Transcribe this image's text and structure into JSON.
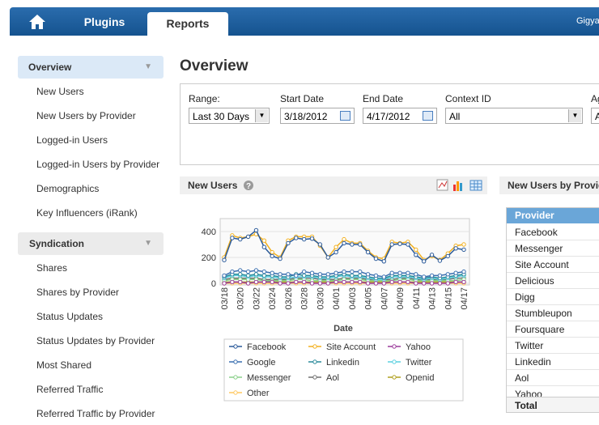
{
  "nav": {
    "tabs": [
      "Plugins",
      "Reports"
    ],
    "user": "Gigya"
  },
  "sidebar": {
    "sections": [
      {
        "title": "Overview",
        "items": [
          "New Users",
          "New Users by Provider",
          "Logged-in Users",
          "Logged-in Users by Provider",
          "Demographics",
          "Key Influencers (iRank)"
        ]
      },
      {
        "title": "Syndication",
        "items": [
          "Shares",
          "Shares by Provider",
          "Status Updates",
          "Status Updates by Provider",
          "Most Shared",
          "Referred Traffic",
          "Referred Traffic by Provider"
        ]
      }
    ]
  },
  "main": {
    "title": "Overview",
    "filters": [
      {
        "label": "Range:",
        "value": "Last 30 Days"
      },
      {
        "label": "Start Date",
        "value": "3/18/2012"
      },
      {
        "label": "End Date",
        "value": "4/17/2012"
      },
      {
        "label": "Context ID",
        "value": "All"
      },
      {
        "label": "Ag",
        "value": "A"
      }
    ]
  },
  "new_users_panel": {
    "title": "New Users",
    "chart": {
      "type": "line",
      "x_label": "Date",
      "categories": [
        "03/18",
        null,
        "03/20",
        null,
        "03/22",
        null,
        "03/24",
        null,
        "03/26",
        null,
        "03/28",
        null,
        "03/30",
        null,
        "04/01",
        null,
        "04/03",
        null,
        "04/05",
        null,
        "04/07",
        null,
        "04/09",
        null,
        "04/11",
        null,
        "04/13",
        null,
        "04/15",
        null,
        "04/17"
      ],
      "ylim": [
        0,
        500
      ],
      "yticks": [
        0,
        200,
        400
      ],
      "grid": true,
      "series": [
        {
          "name": "Facebook",
          "color": "#2b5a9a",
          "values": [
            180,
            350,
            340,
            360,
            410,
            280,
            210,
            190,
            310,
            350,
            340,
            345,
            300,
            200,
            240,
            310,
            300,
            300,
            240,
            190,
            170,
            300,
            305,
            300,
            220,
            170,
            220,
            175,
            210,
            270,
            260
          ]
        },
        {
          "name": "Site Account",
          "color": "#f2b01e",
          "values": [
            200,
            370,
            350,
            360,
            380,
            330,
            240,
            200,
            330,
            360,
            360,
            360,
            290,
            200,
            280,
            340,
            310,
            310,
            250,
            200,
            190,
            320,
            310,
            320,
            260,
            180,
            210,
            180,
            230,
            290,
            300
          ]
        },
        {
          "name": "Yahoo",
          "color": "#9a3a9a",
          "values": [
            0,
            10,
            10,
            0,
            10,
            10,
            10,
            0,
            0,
            10,
            10,
            0,
            0,
            0,
            10,
            10,
            10,
            10,
            0,
            0,
            0,
            10,
            10,
            10,
            0,
            0,
            0,
            0,
            0,
            10,
            10
          ]
        },
        {
          "name": "Google",
          "color": "#3a6fb0",
          "values": [
            60,
            90,
            100,
            90,
            100,
            90,
            80,
            70,
            70,
            60,
            90,
            80,
            70,
            70,
            80,
            90,
            90,
            90,
            70,
            60,
            50,
            80,
            80,
            80,
            70,
            50,
            60,
            60,
            70,
            80,
            90
          ]
        },
        {
          "name": "Linkedin",
          "color": "#2a8a9a",
          "values": [
            50,
            70,
            70,
            60,
            70,
            60,
            60,
            50,
            50,
            70,
            60,
            60,
            50,
            50,
            60,
            70,
            60,
            60,
            50,
            40,
            40,
            60,
            60,
            60,
            50,
            40,
            50,
            40,
            50,
            60,
            70
          ]
        },
        {
          "name": "Twitter",
          "color": "#5ad0e0",
          "values": [
            40,
            60,
            60,
            50,
            60,
            50,
            50,
            40,
            40,
            50,
            50,
            50,
            40,
            40,
            50,
            60,
            50,
            50,
            40,
            30,
            30,
            50,
            50,
            50,
            40,
            30,
            40,
            30,
            40,
            50,
            60
          ]
        },
        {
          "name": "Messenger",
          "color": "#8ad08a",
          "values": [
            20,
            30,
            30,
            30,
            30,
            20,
            20,
            20,
            20,
            30,
            30,
            20,
            20,
            20,
            20,
            30,
            30,
            30,
            20,
            20,
            20,
            20,
            30,
            30,
            20,
            20,
            20,
            20,
            20,
            20,
            30
          ]
        },
        {
          "name": "Aol",
          "color": "#707070",
          "values": [
            30,
            40,
            40,
            40,
            40,
            30,
            30,
            30,
            30,
            40,
            40,
            40,
            30,
            30,
            30,
            40,
            40,
            40,
            30,
            30,
            30,
            30,
            40,
            40,
            30,
            30,
            30,
            30,
            30,
            40,
            40
          ]
        },
        {
          "name": "Openid",
          "color": "#b0a020",
          "values": [
            10,
            10,
            10,
            10,
            10,
            10,
            10,
            10,
            10,
            10,
            10,
            10,
            10,
            10,
            10,
            10,
            10,
            10,
            10,
            10,
            10,
            10,
            10,
            10,
            10,
            10,
            10,
            10,
            10,
            10,
            10
          ]
        },
        {
          "name": "Other",
          "color": "#ffc860",
          "values": [
            0,
            0,
            0,
            0,
            0,
            0,
            0,
            0,
            0,
            0,
            0,
            0,
            0,
            0,
            0,
            0,
            0,
            0,
            0,
            0,
            0,
            0,
            0,
            0,
            0,
            0,
            0,
            0,
            0,
            0,
            0
          ]
        }
      ]
    }
  },
  "provider_panel": {
    "title": "New Users by Provider",
    "table": {
      "header": "Provider",
      "rows": [
        "Facebook",
        "Messenger",
        "Site Account",
        "Delicious",
        "Digg",
        "Stumbleupon",
        "Foursquare",
        "Twitter",
        "Linkedin",
        "Aol",
        "Yahoo"
      ],
      "total": "Total"
    }
  }
}
